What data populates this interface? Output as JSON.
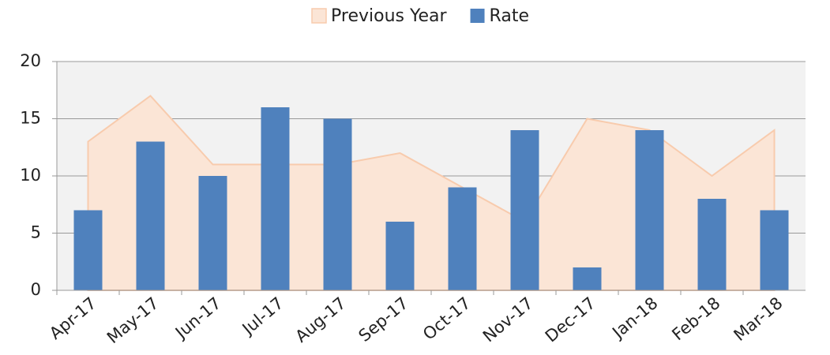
{
  "chart_data": {
    "type": "combo",
    "categories": [
      "Apr-17",
      "May-17",
      "Jun-17",
      "Jul-17",
      "Aug-17",
      "Sep-17",
      "Oct-17",
      "Nov-17",
      "Dec-17",
      "Jan-18",
      "Feb-18",
      "Mar-18"
    ],
    "series": [
      {
        "name": "Previous Year",
        "type": "area",
        "color": "#fbe5d6",
        "stroke": "#f8cbad",
        "values": [
          13,
          17,
          11,
          11,
          11,
          12,
          9,
          6,
          15,
          14,
          10,
          14
        ]
      },
      {
        "name": "Rate",
        "type": "bar",
        "color": "#4f81bd",
        "values": [
          7,
          13,
          10,
          16,
          15,
          6,
          9,
          14,
          2,
          14,
          8,
          7
        ]
      }
    ],
    "ylim": [
      0,
      20
    ],
    "yticks": [
      0,
      5,
      10,
      15,
      20
    ],
    "grid": true,
    "legend": "top"
  }
}
